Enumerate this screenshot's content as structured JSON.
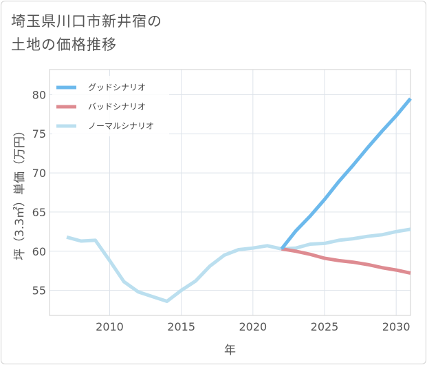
{
  "chart_data": {
    "type": "line",
    "title": "埼玉県川口市新井宿の\n土地の価格推移",
    "xlabel": "年",
    "ylabel": "坪（3.3㎡）単価（万円）",
    "xlim": [
      2005.8,
      2031
    ],
    "ylim": [
      51.8,
      83.2
    ],
    "xticks": [
      2010,
      2015,
      2020,
      2025,
      2030
    ],
    "xtick_labels": [
      "2010",
      "2015",
      "2020",
      "2025",
      "2030"
    ],
    "yticks": [
      55,
      60,
      65,
      70,
      75,
      80
    ],
    "ytick_labels": [
      "55",
      "60",
      "65",
      "70",
      "75",
      "80"
    ],
    "grid": true,
    "legend_position": "top-left",
    "series": [
      {
        "name": "グッドシナリオ",
        "color": "#6cb9ec",
        "x": [
          2022,
          2023,
          2024,
          2025,
          2026,
          2027,
          2028,
          2029,
          2030,
          2031
        ],
        "y": [
          60.3,
          62.6,
          64.5,
          66.6,
          68.9,
          71.0,
          73.2,
          75.3,
          77.3,
          79.5
        ]
      },
      {
        "name": "バッドシナリオ",
        "color": "#de8b91",
        "x": [
          2022,
          2023,
          2024,
          2025,
          2026,
          2027,
          2028,
          2029,
          2030,
          2031
        ],
        "y": [
          60.3,
          60.0,
          59.6,
          59.1,
          58.8,
          58.6,
          58.3,
          57.9,
          57.6,
          57.2
        ]
      },
      {
        "name": "ノーマルシナリオ",
        "color": "#bbdfef",
        "x": [
          2007,
          2008,
          2009,
          2010,
          2011,
          2012,
          2013,
          2014,
          2015,
          2016,
          2017,
          2018,
          2019,
          2020,
          2021,
          2022,
          2023,
          2024,
          2025,
          2026,
          2027,
          2028,
          2029,
          2030,
          2031
        ],
        "y": [
          61.8,
          61.3,
          61.4,
          58.8,
          56.1,
          54.8,
          54.2,
          53.6,
          55.0,
          56.2,
          58.1,
          59.5,
          60.2,
          60.4,
          60.7,
          60.3,
          60.4,
          60.9,
          61.0,
          61.4,
          61.6,
          61.9,
          62.1,
          62.5,
          62.8
        ]
      }
    ]
  }
}
